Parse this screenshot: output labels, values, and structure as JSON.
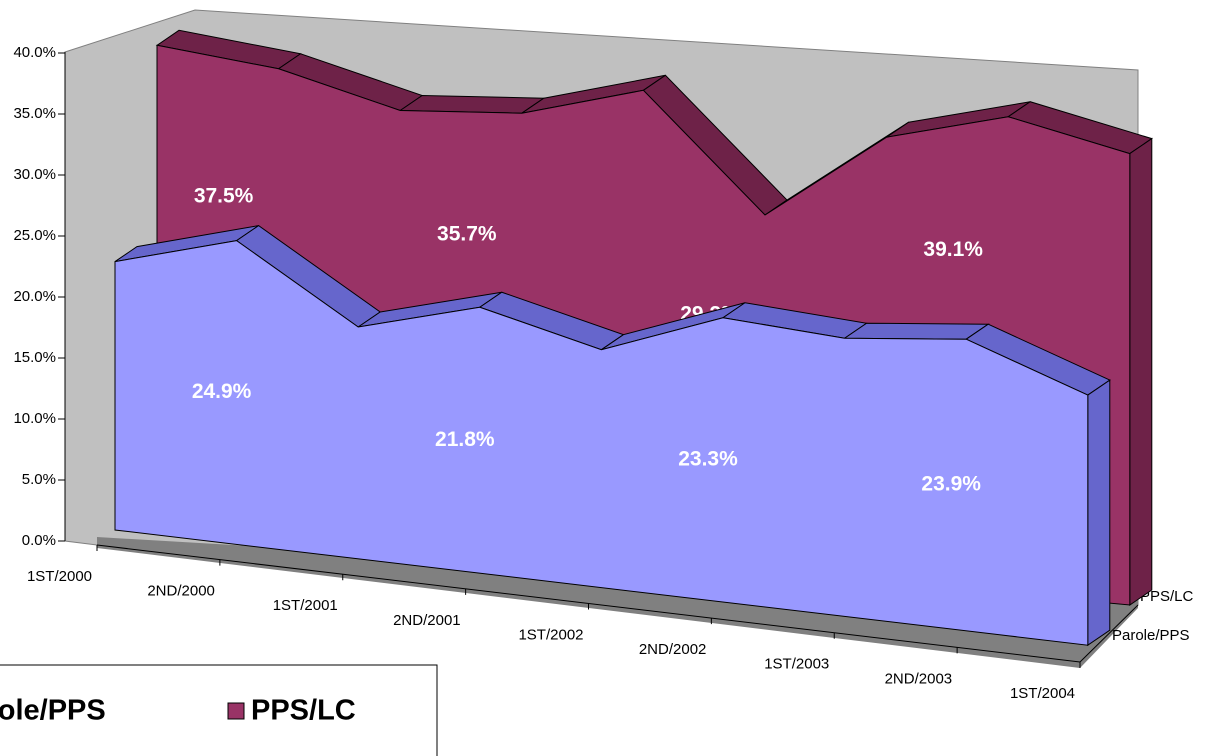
{
  "chart_data": {
    "type": "area3d",
    "categories": [
      "1ST/2000",
      "2ND/2000",
      "1ST/2001",
      "2ND/2001",
      "1ST/2002",
      "2ND/2002",
      "1ST/2003",
      "2ND/2003",
      "1ST/2004"
    ],
    "series": [
      {
        "name": "Parole/PPS",
        "color": "#9999ff",
        "top_color": "#6666cc",
        "values": [
          22.0,
          24.9,
          19.0,
          21.8,
          19.5,
          23.3,
          22.8,
          23.9,
          20.5
        ],
        "value_labels": [
          null,
          "24.9%",
          null,
          "21.8%",
          null,
          "23.3%",
          null,
          "23.9%",
          null
        ]
      },
      {
        "name": "PPS/LC",
        "color": "#993366",
        "top_color": "#6e2248",
        "values": [
          38.5,
          37.5,
          35.0,
          35.7,
          38.5,
          29.2,
          36.5,
          39.1,
          37.0
        ],
        "value_labels": [
          null,
          "37.5%",
          null,
          "35.7%",
          null,
          "29.2%",
          null,
          "39.1%",
          null
        ]
      }
    ],
    "ylim": [
      0,
      40
    ],
    "yticks": [
      {
        "value": 0,
        "label": "0.0%"
      },
      {
        "value": 5,
        "label": "5.0%"
      },
      {
        "value": 10,
        "label": "10.0%"
      },
      {
        "value": 15,
        "label": "15.0%"
      },
      {
        "value": 20,
        "label": "20.0%"
      },
      {
        "value": 25,
        "label": "25.0%"
      },
      {
        "value": 30,
        "label": "30.0%"
      },
      {
        "value": 35,
        "label": "35.0%"
      },
      {
        "value": 40,
        "label": "40.0%"
      }
    ],
    "legend": "bottom"
  }
}
